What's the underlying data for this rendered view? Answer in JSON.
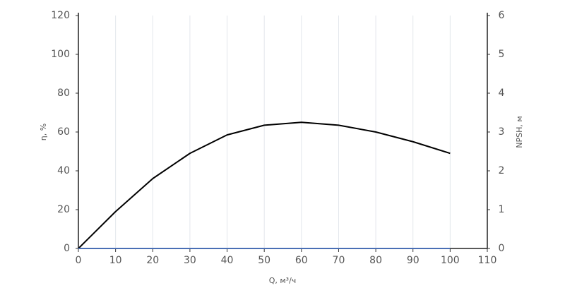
{
  "chart_data": {
    "type": "line",
    "xlabel": "Q, м³/ч",
    "ylabel": "η, %",
    "y2label": "NPSH, м",
    "x": [
      0,
      10,
      20,
      30,
      40,
      50,
      60,
      70,
      80,
      90,
      100
    ],
    "series": [
      {
        "color": "#000000",
        "values": [
          0,
          19,
          36,
          49,
          58.5,
          63.5,
          65,
          63.5,
          60,
          55,
          49
        ]
      },
      {
        "color": "#4a6fb5",
        "axis": "y2",
        "values": [
          0,
          0,
          0,
          0,
          0,
          0,
          0,
          0,
          0,
          0,
          0
        ]
      }
    ],
    "xlim": [
      0,
      110
    ],
    "xticks": [
      0,
      10,
      20,
      30,
      40,
      50,
      60,
      70,
      80,
      90,
      100,
      110
    ],
    "ylim": [
      0,
      120
    ],
    "yticks": [
      0,
      20,
      40,
      60,
      80,
      100,
      120
    ],
    "y2lim": [
      0,
      6
    ],
    "y2ticks": [
      0,
      1,
      2,
      3,
      4,
      5,
      6
    ],
    "grid": "x"
  }
}
